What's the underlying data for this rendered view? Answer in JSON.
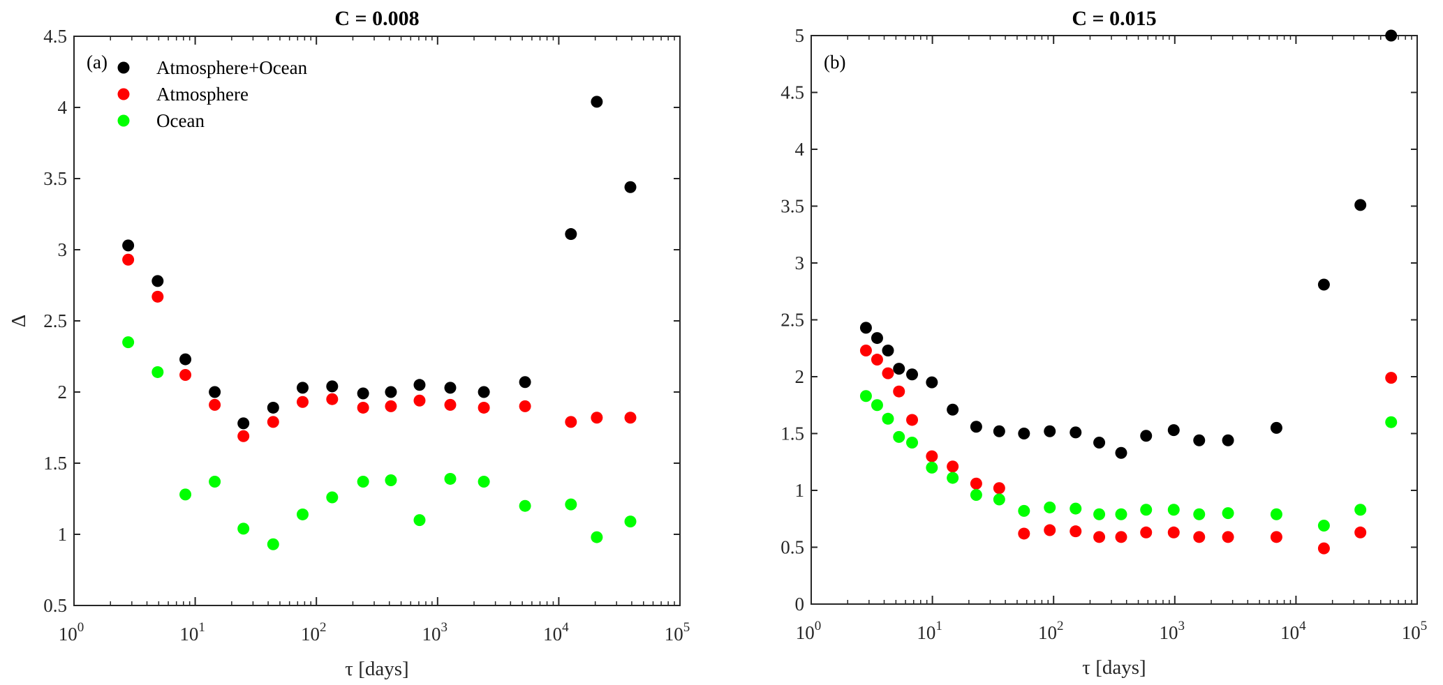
{
  "chart_data": [
    {
      "type": "scatter",
      "title": "C = 0.008",
      "panel_label": "(a)",
      "xlabel": "τ [days]",
      "ylabel": "Δ",
      "xscale": "log",
      "xlim": [
        1,
        100000
      ],
      "ylim": [
        0.5,
        4.5
      ],
      "yticks": [
        0.5,
        1,
        1.5,
        2,
        2.5,
        3,
        3.5,
        4,
        4.5
      ],
      "ytick_labels": [
        "0.5",
        "1",
        "1.5",
        "2",
        "2.5",
        "3",
        "3.5",
        "4",
        "4.5"
      ],
      "xticks": [
        1,
        10,
        100,
        1000,
        10000,
        100000
      ],
      "xtick_labels": [
        {
          "base": "10",
          "exp": "0"
        },
        {
          "base": "10",
          "exp": "1"
        },
        {
          "base": "10",
          "exp": "2"
        },
        {
          "base": "10",
          "exp": "3"
        },
        {
          "base": "10",
          "exp": "4"
        },
        {
          "base": "10",
          "exp": "5"
        }
      ],
      "grid": false,
      "legend": "top-left",
      "x": [
        2.8,
        4.9,
        8.3,
        14.5,
        25,
        44,
        77,
        135,
        243,
        412,
        710,
        1273,
        2410,
        5270,
        12600,
        20600,
        39000
      ],
      "series": [
        {
          "name": "Atmosphere+Ocean",
          "color": "#000000",
          "values": [
            3.03,
            2.78,
            2.23,
            2.0,
            1.78,
            1.89,
            2.03,
            2.04,
            1.99,
            2.0,
            2.05,
            2.03,
            2.0,
            2.07,
            3.11,
            4.04,
            3.44
          ]
        },
        {
          "name": "Atmosphere",
          "color": "#ff0000",
          "values": [
            2.93,
            2.67,
            2.12,
            1.91,
            1.69,
            1.79,
            1.93,
            1.95,
            1.89,
            1.9,
            1.94,
            1.91,
            1.89,
            1.9,
            1.79,
            1.82,
            1.82
          ]
        },
        {
          "name": "Ocean",
          "color": "#00ff00",
          "values": [
            2.35,
            2.14,
            1.28,
            1.37,
            1.04,
            0.93,
            1.14,
            1.26,
            1.37,
            1.38,
            1.1,
            1.39,
            1.37,
            1.2,
            1.21,
            0.98,
            1.09
          ]
        }
      ]
    },
    {
      "type": "scatter",
      "title": "C = 0.015",
      "panel_label": "(b)",
      "xlabel": "τ [days]",
      "ylabel": "",
      "xscale": "log",
      "xlim": [
        1,
        100000
      ],
      "ylim": [
        0,
        5
      ],
      "yticks": [
        0,
        0.5,
        1,
        1.5,
        2,
        2.5,
        3,
        3.5,
        4,
        4.5,
        5
      ],
      "ytick_labels": [
        "0",
        "0.5",
        "1",
        "1.5",
        "2",
        "2.5",
        "3",
        "3.5",
        "4",
        "4.5",
        "5"
      ],
      "xticks": [
        1,
        10,
        100,
        1000,
        10000,
        100000
      ],
      "xtick_labels": [
        {
          "base": "10",
          "exp": "0"
        },
        {
          "base": "10",
          "exp": "1"
        },
        {
          "base": "10",
          "exp": "2"
        },
        {
          "base": "10",
          "exp": "3"
        },
        {
          "base": "10",
          "exp": "4"
        },
        {
          "base": "10",
          "exp": "5"
        }
      ],
      "grid": false,
      "legend": "none",
      "x": [
        2.83,
        3.5,
        4.3,
        5.3,
        6.8,
        9.9,
        14.7,
        23,
        35.6,
        57,
        93,
        152,
        238,
        361,
        580,
        980,
        1590,
        2750,
        6900,
        17000,
        34000,
        61000
      ],
      "series": [
        {
          "color": "#000000",
          "values": [
            2.43,
            2.34,
            2.23,
            2.07,
            2.02,
            1.95,
            1.71,
            1.56,
            1.52,
            1.5,
            1.52,
            1.51,
            1.42,
            1.33,
            1.48,
            1.53,
            1.44,
            1.44,
            1.55,
            2.81,
            3.51,
            5.0
          ]
        },
        {
          "color": "#ff0000",
          "values": [
            2.23,
            2.15,
            2.03,
            1.87,
            1.62,
            1.3,
            1.21,
            1.06,
            1.02,
            0.62,
            0.65,
            0.64,
            0.59,
            0.59,
            0.63,
            0.63,
            0.59,
            0.59,
            0.59,
            0.49,
            0.63,
            1.99
          ]
        },
        {
          "color": "#00ff00",
          "values": [
            1.83,
            1.75,
            1.63,
            1.47,
            1.42,
            1.2,
            1.11,
            0.96,
            0.92,
            0.82,
            0.85,
            0.84,
            0.79,
            0.79,
            0.83,
            0.83,
            0.79,
            0.8,
            0.79,
            0.69,
            0.83,
            1.6
          ]
        }
      ]
    }
  ]
}
